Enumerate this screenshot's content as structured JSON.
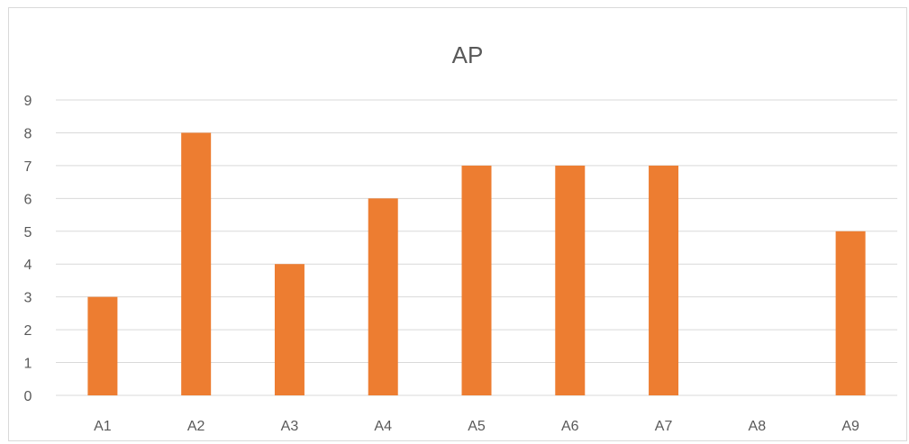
{
  "chart_data": {
    "type": "bar",
    "title": "AP",
    "xlabel": "",
    "ylabel": "",
    "categories": [
      "A1",
      "A2",
      "A3",
      "A4",
      "A5",
      "A6",
      "A7",
      "A8",
      "A9"
    ],
    "values": [
      3,
      8,
      4,
      6,
      7,
      7,
      7,
      0,
      5
    ],
    "ylim": [
      0,
      9
    ],
    "yticks": [
      "0",
      "1",
      "2",
      "3",
      "4",
      "5",
      "6",
      "7",
      "8",
      "9"
    ],
    "grid": true,
    "legend": "none",
    "bar_color": "#ED7D31",
    "grid_color": "#D9D9D9",
    "text_color": "#595959"
  }
}
